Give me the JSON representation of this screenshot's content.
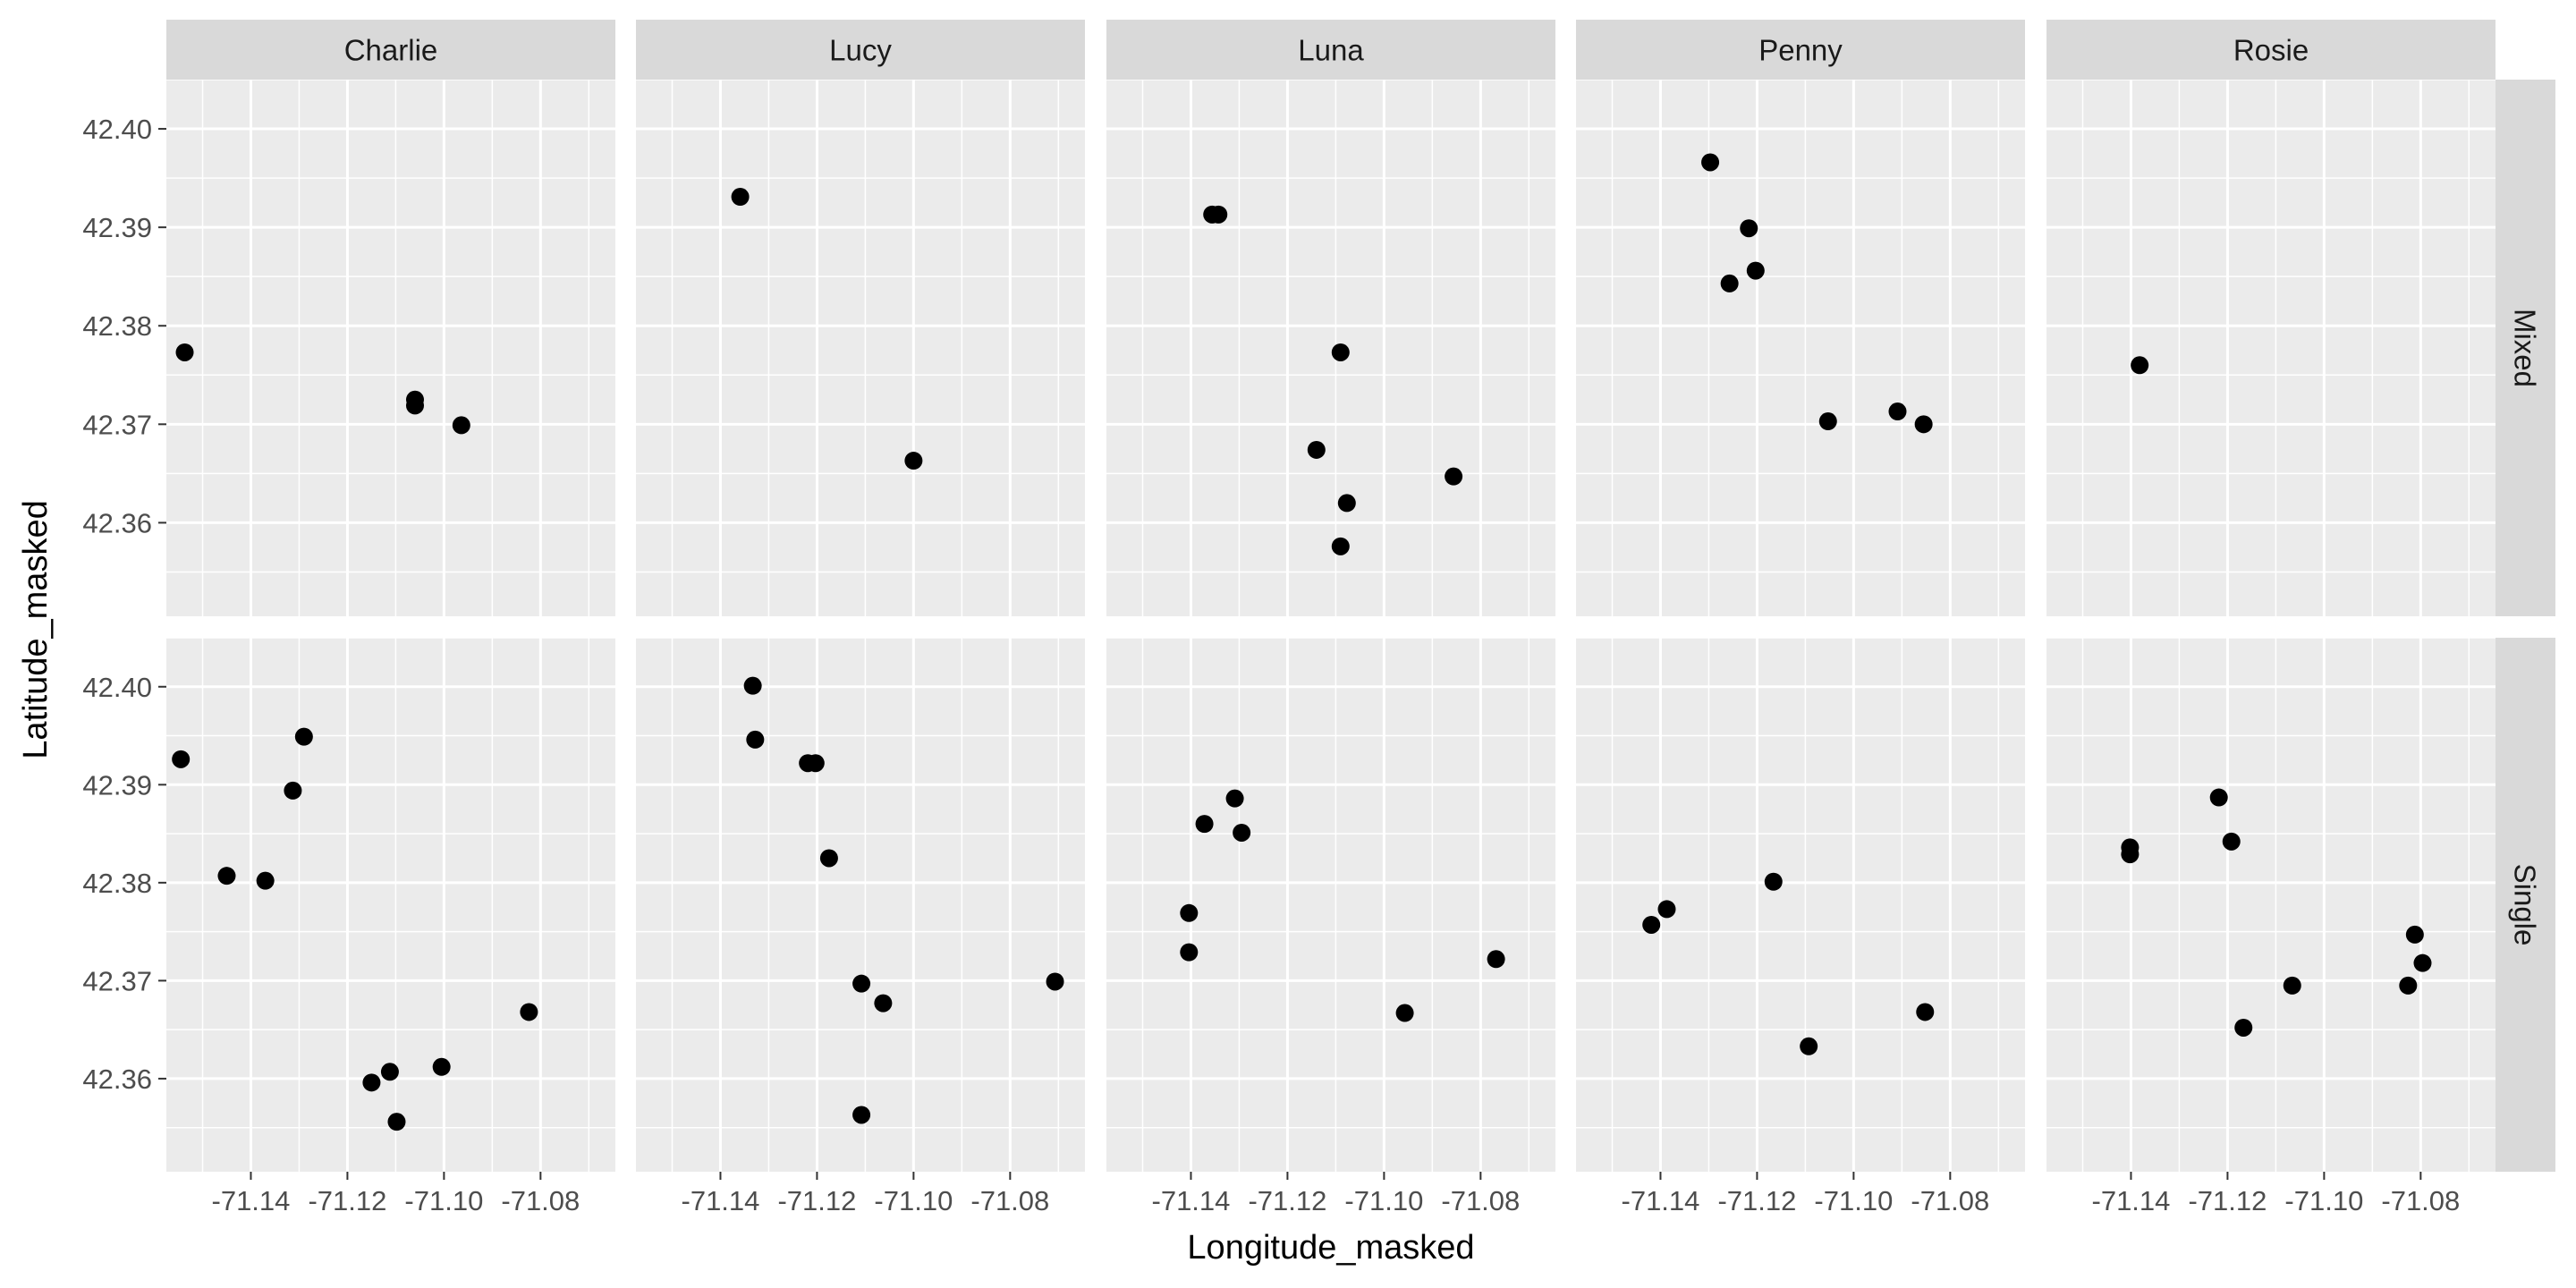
{
  "chart_data": {
    "type": "scatter",
    "xlabel": "Longitude_masked",
    "ylabel": "Latitude_masked",
    "xlim": [
      -71.1575,
      -71.0645
    ],
    "ylim": [
      42.3505,
      42.405
    ],
    "x_ticks": [
      -71.14,
      -71.12,
      -71.1,
      -71.08
    ],
    "x_tick_labels": [
      "-71.14",
      "-71.12",
      "-71.10",
      "-71.08"
    ],
    "y_ticks": [
      42.36,
      42.37,
      42.38,
      42.39,
      42.4
    ],
    "y_tick_labels": [
      "42.36",
      "42.37",
      "42.38",
      "42.39",
      "42.40"
    ],
    "grid": true,
    "facet_columns": [
      "Charlie",
      "Lucy",
      "Luna",
      "Penny",
      "Rosie"
    ],
    "facet_rows": [
      "Mixed",
      "Single"
    ],
    "panels": [
      {
        "col": "Charlie",
        "row": "Mixed",
        "points": [
          [
            -71.1537,
            42.3773
          ],
          [
            -71.106,
            42.3725
          ],
          [
            -71.106,
            42.3719
          ],
          [
            -71.0964,
            42.3699
          ]
        ]
      },
      {
        "col": "Lucy",
        "row": "Mixed",
        "points": [
          [
            -71.1359,
            42.3931
          ],
          [
            -71.1,
            42.3663
          ]
        ]
      },
      {
        "col": "Luna",
        "row": "Mixed",
        "points": [
          [
            -71.1356,
            42.3913
          ],
          [
            -71.1343,
            42.3913
          ],
          [
            -71.109,
            42.3773
          ],
          [
            -71.114,
            42.3674
          ],
          [
            -71.0856,
            42.3647
          ],
          [
            -71.1077,
            42.362
          ],
          [
            -71.109,
            42.3576
          ]
        ]
      },
      {
        "col": "Penny",
        "row": "Mixed",
        "points": [
          [
            -71.1297,
            42.3966
          ],
          [
            -71.1217,
            42.3899
          ],
          [
            -71.1203,
            42.3856
          ],
          [
            -71.1257,
            42.3843
          ],
          [
            -71.1053,
            42.3703
          ],
          [
            -71.0909,
            42.3713
          ],
          [
            -71.0855,
            42.37
          ]
        ]
      },
      {
        "col": "Rosie",
        "row": "Mixed",
        "points": [
          [
            -71.1382,
            42.376
          ]
        ]
      },
      {
        "col": "Charlie",
        "row": "Single",
        "points": [
          [
            -71.1545,
            42.3926
          ],
          [
            -71.129,
            42.3949
          ],
          [
            -71.1313,
            42.3894
          ],
          [
            -71.145,
            42.3807
          ],
          [
            -71.137,
            42.3802
          ],
          [
            -71.115,
            42.3596
          ],
          [
            -71.1112,
            42.3607
          ],
          [
            -71.1005,
            42.3612
          ],
          [
            -71.1098,
            42.3556
          ],
          [
            -71.0824,
            42.3668
          ]
        ]
      },
      {
        "col": "Lucy",
        "row": "Single",
        "points": [
          [
            -71.1333,
            42.4001
          ],
          [
            -71.1328,
            42.3946
          ],
          [
            -71.1219,
            42.3922
          ],
          [
            -71.1203,
            42.3922
          ],
          [
            -71.1175,
            42.3825
          ],
          [
            -71.1108,
            42.3697
          ],
          [
            -71.1063,
            42.3677
          ],
          [
            -71.1108,
            42.3563
          ],
          [
            -71.0707,
            42.3699
          ]
        ]
      },
      {
        "col": "Luna",
        "row": "Single",
        "points": [
          [
            -71.1309,
            42.3886
          ],
          [
            -71.1372,
            42.386
          ],
          [
            -71.1295,
            42.3851
          ],
          [
            -71.1404,
            42.3769
          ],
          [
            -71.1404,
            42.3729
          ],
          [
            -71.0768,
            42.3722
          ],
          [
            -71.0957,
            42.3667
          ]
        ]
      },
      {
        "col": "Penny",
        "row": "Single",
        "points": [
          [
            -71.1387,
            42.3773
          ],
          [
            -71.1419,
            42.3757
          ],
          [
            -71.1166,
            42.3801
          ],
          [
            -71.1093,
            42.3633
          ],
          [
            -71.0852,
            42.3668
          ]
        ]
      },
      {
        "col": "Rosie",
        "row": "Single",
        "points": [
          [
            -71.1402,
            42.3836
          ],
          [
            -71.1402,
            42.3829
          ],
          [
            -71.1218,
            42.3887
          ],
          [
            -71.1192,
            42.3842
          ],
          [
            -71.1167,
            42.3652
          ],
          [
            -71.1066,
            42.3695
          ],
          [
            -71.0812,
            42.3747
          ],
          [
            -71.0796,
            42.3718
          ],
          [
            -71.0826,
            42.3695
          ]
        ]
      }
    ]
  }
}
